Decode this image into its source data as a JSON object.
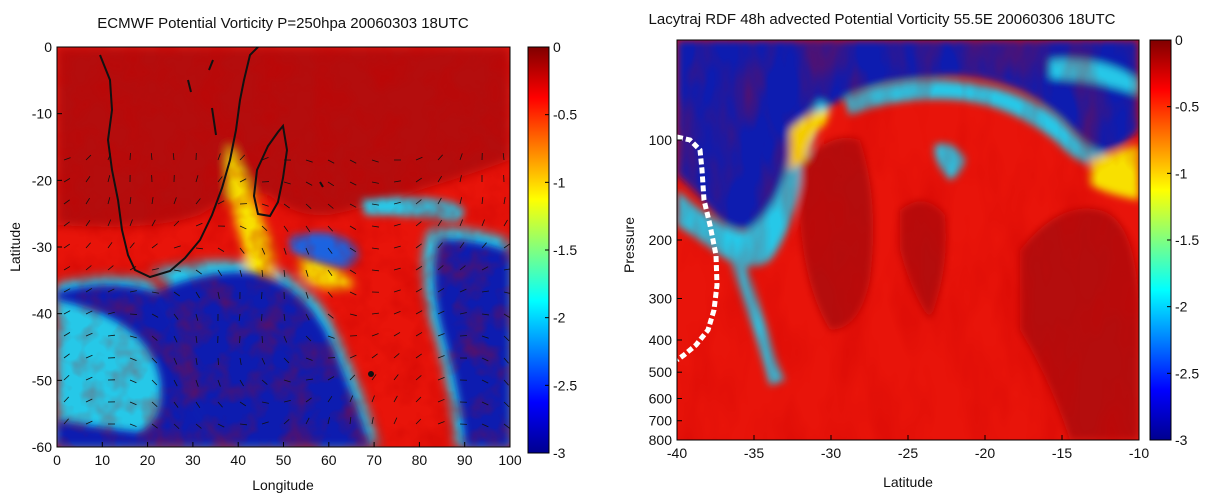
{
  "chart_data": [
    {
      "type": "heatmap",
      "title": "ECMWF Potential Vorticity P=250hpa 20060303 18UTC",
      "xlabel": "Longitude",
      "ylabel": "Latitude",
      "xlim": [
        0,
        100
      ],
      "ylim": [
        -60,
        0
      ],
      "x_ticks": [
        0,
        10,
        20,
        30,
        40,
        50,
        60,
        70,
        80,
        90,
        100
      ],
      "y_ticks": [
        0,
        -10,
        -20,
        -30,
        -40,
        -50,
        -60
      ],
      "colorbar": {
        "min": -3,
        "max": 0,
        "ticks": [
          0,
          -0.5,
          -1,
          -1.5,
          -2,
          -2.5,
          -3
        ]
      },
      "colormap": [
        "#00008f",
        "#0000ff",
        "#0080ff",
        "#00ffff",
        "#80ff80",
        "#ffff00",
        "#ff8000",
        "#ff0000",
        "#800000"
      ],
      "overlays": [
        "coastline",
        "wind-vectors"
      ]
    },
    {
      "type": "heatmap",
      "title": "Lacytraj RDF 48h advected Potential Vorticity 55.5E 20060306 18UTC",
      "xlabel": "Latitude",
      "ylabel": "Pressure",
      "xlim": [
        -40,
        -10
      ],
      "ylim": [
        800,
        50
      ],
      "y_scale": "log",
      "x_ticks": [
        -40,
        -35,
        -30,
        -25,
        -20,
        -15,
        -10
      ],
      "y_ticks": [
        100,
        200,
        300,
        400,
        500,
        600,
        700,
        800
      ],
      "colorbar": {
        "min": -3,
        "max": 0,
        "ticks": [
          0,
          -0.5,
          -1,
          -1.5,
          -2,
          -2.5,
          -3
        ]
      },
      "colormap": [
        "#00008f",
        "#0000ff",
        "#0080ff",
        "#00ffff",
        "#80ff80",
        "#ffff00",
        "#ff8000",
        "#ff0000",
        "#800000"
      ],
      "overlays": [
        "surface-mask"
      ]
    }
  ]
}
